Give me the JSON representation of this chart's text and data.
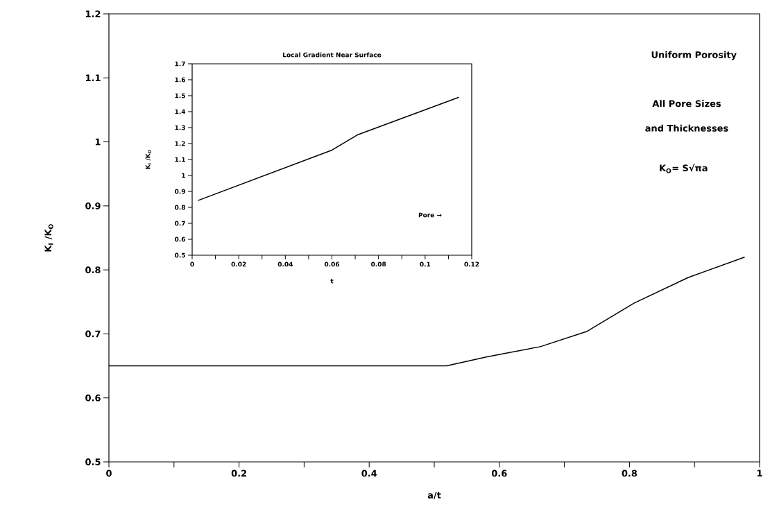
{
  "chart_data": [
    {
      "type": "line",
      "xlabel": "a/t",
      "ylabel": "K$_{I}$ /K$_{O}$",
      "color": "#000000",
      "marker": "none",
      "line_style": "solid",
      "grid": false,
      "x": [
        0,
        0.519,
        0.58,
        0.663,
        0.735,
        0.807,
        0.89,
        0.977
      ],
      "values": [
        0.65,
        0.65,
        0.664,
        0.68,
        0.704,
        0.748,
        0.788,
        0.82
      ],
      "xlim": [
        0,
        1
      ],
      "ylim": [
        0.5,
        1.2
      ],
      "xticks": [
        0,
        {
          "value": 0.1,
          "label": null
        },
        0.2,
        {
          "value": 0.3,
          "label": null
        },
        0.4,
        {
          "value": 0.5,
          "label": null
        },
        0.6,
        {
          "value": 0.7,
          "label": null
        },
        0.8,
        {
          "value": 0.9,
          "label": null
        },
        1
      ],
      "yticks": [
        0.5,
        0.6,
        0.7,
        0.8,
        0.9,
        1,
        1.1,
        1.2
      ],
      "annotations": [
        "Uniform Porosity",
        "All Pore Sizes",
        "and Thicknesses",
        "K$_{O}$= S√πa"
      ]
    },
    {
      "type": "line",
      "title": "Local Gradient Near Surface",
      "xlabel": "t",
      "ylabel": "K$_{I}$ /K$_{O}$",
      "color": "#000000",
      "marker": "none",
      "line_style": "solid",
      "grid": false,
      "x": [
        0.0025,
        0.06,
        0.0709,
        0.1145
      ],
      "values": [
        0.843,
        1.159,
        1.254,
        1.49
      ],
      "xlim": [
        0,
        0.12
      ],
      "ylim": [
        0.5,
        1.7
      ],
      "xticks": [
        0,
        {
          "value": 0.01,
          "label": null
        },
        0.02,
        {
          "value": 0.03,
          "label": null
        },
        0.04,
        {
          "value": 0.05,
          "label": null
        },
        0.06,
        {
          "value": 0.07,
          "label": null
        },
        0.08,
        {
          "value": 0.09,
          "label": null
        },
        0.1,
        {
          "value": 0.11,
          "label": null
        },
        0.12
      ],
      "yticks": [
        0.5,
        0.6,
        0.7,
        0.8,
        0.9,
        1,
        1.1,
        1.2,
        1.3,
        1.4,
        1.5,
        1.6,
        1.7
      ],
      "annotations": [
        "Pore →"
      ]
    }
  ]
}
